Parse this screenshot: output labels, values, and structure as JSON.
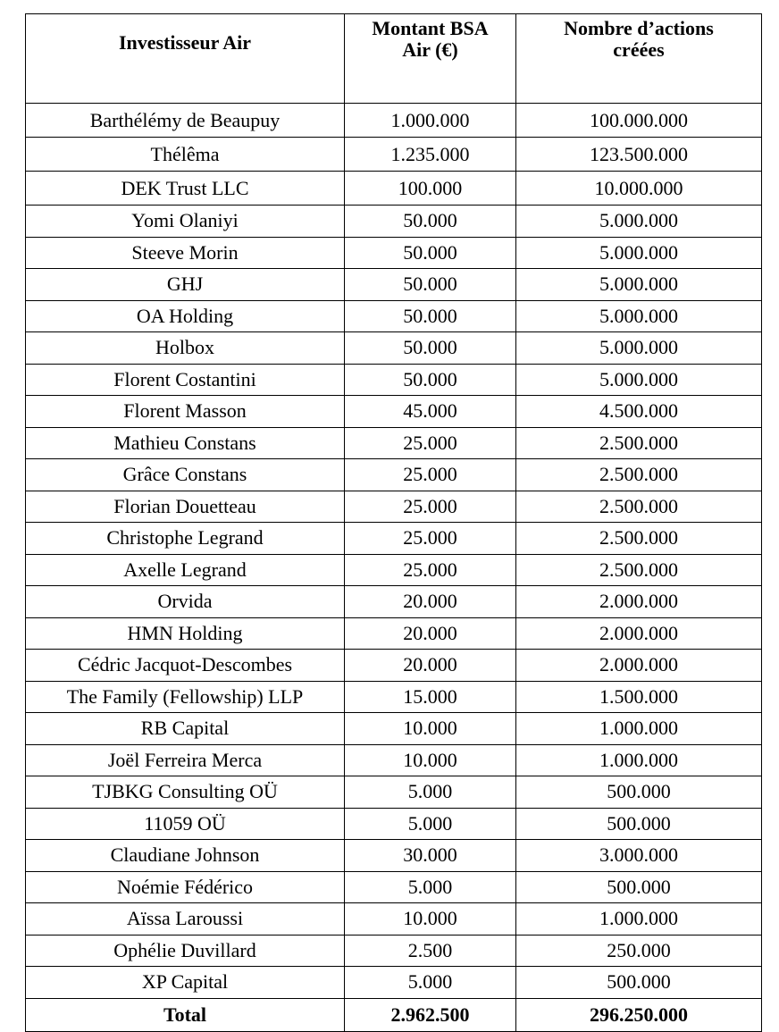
{
  "headers": [
    "Investisseur Air",
    "Montant BSA Air (€)",
    "Nombre d’actions créées"
  ],
  "rows": [
    [
      "Barthélémy de Beaupuy",
      "1.000.000",
      "100.000.000"
    ],
    [
      "Thélêma",
      "1.235.000",
      "123.500.000"
    ],
    [
      "DEK Trust LLC",
      "100.000",
      "10.000.000"
    ],
    [
      "Yomi Olaniyi",
      "50.000",
      "5.000.000"
    ],
    [
      "Steeve Morin",
      "50.000",
      "5.000.000"
    ],
    [
      "GHJ",
      "50.000",
      "5.000.000"
    ],
    [
      "OA Holding",
      "50.000",
      "5.000.000"
    ],
    [
      "Holbox",
      "50.000",
      "5.000.000"
    ],
    [
      "Florent Costantini",
      "50.000",
      "5.000.000"
    ],
    [
      "Florent Masson",
      "45.000",
      "4.500.000"
    ],
    [
      "Mathieu Constans",
      "25.000",
      "2.500.000"
    ],
    [
      "Grâce Constans",
      "25.000",
      "2.500.000"
    ],
    [
      "Florian Douetteau",
      "25.000",
      "2.500.000"
    ],
    [
      "Christophe Legrand",
      "25.000",
      "2.500.000"
    ],
    [
      "Axelle Legrand",
      "25.000",
      "2.500.000"
    ],
    [
      "Orvida",
      "20.000",
      "2.000.000"
    ],
    [
      "HMN Holding",
      "20.000",
      "2.000.000"
    ],
    [
      "Cédric Jacquot-Descombes",
      "20.000",
      "2.000.000"
    ],
    [
      "The Family (Fellowship) LLP",
      "15.000",
      "1.500.000"
    ],
    [
      "RB Capital",
      "10.000",
      "1.000.000"
    ],
    [
      "Joël Ferreira Merca",
      "10.000",
      "1.000.000"
    ],
    [
      "TJBKG Consulting OÜ",
      "5.000",
      "500.000"
    ],
    [
      "11059 OÜ",
      "5.000",
      "500.000"
    ],
    [
      "Claudiane Johnson",
      "30.000",
      "3.000.000"
    ],
    [
      "Noémie Fédérico",
      "5.000",
      "500.000"
    ],
    [
      "Aïssa Laroussi",
      "10.000",
      "1.000.000"
    ],
    [
      "Ophélie Duvillard",
      "2.500",
      "250.000"
    ],
    [
      "XP Capital",
      "5.000",
      "500.000"
    ]
  ],
  "total": [
    "Total",
    "2.962.500",
    "296.250.000"
  ]
}
